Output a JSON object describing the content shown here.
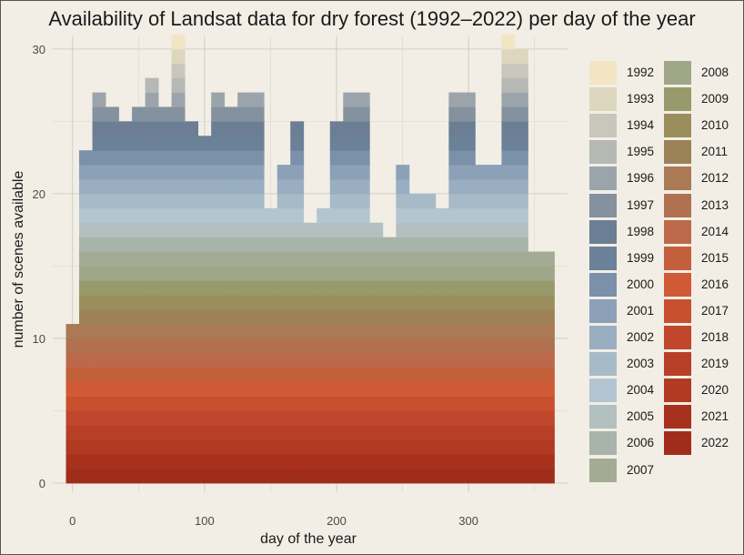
{
  "chart_data": {
    "type": "bar",
    "stacked": true,
    "title": "Availability of Landsat data for dry forest (1992–2022) per day of the year",
    "xlabel": "day of the year",
    "ylabel": "number of scenes available",
    "xlim": [
      -15,
      375
    ],
    "ylim": [
      0,
      31.5
    ],
    "x_ticks": [
      "0",
      "100",
      "200",
      "300"
    ],
    "x_tick_values": [
      0,
      100,
      200,
      300
    ],
    "y_ticks": [
      "0",
      "10",
      "20",
      "30"
    ],
    "y_tick_values": [
      0,
      10,
      20,
      30
    ],
    "grid": true,
    "legend_position": "right",
    "bin_width": 10,
    "x": [
      0,
      10,
      20,
      30,
      40,
      50,
      60,
      70,
      80,
      90,
      100,
      110,
      120,
      130,
      140,
      150,
      160,
      170,
      180,
      190,
      200,
      210,
      220,
      230,
      240,
      250,
      260,
      270,
      280,
      290,
      300,
      310,
      320,
      330,
      340,
      350,
      360
    ],
    "totals": [
      11,
      23,
      27,
      26,
      25,
      26,
      28,
      26,
      31,
      25,
      24,
      27,
      26,
      27,
      27,
      19,
      22,
      25,
      18,
      19,
      25,
      27,
      27,
      18,
      17,
      22,
      20,
      20,
      19,
      27,
      27,
      22,
      22,
      31,
      30,
      16,
      16
    ],
    "series_names": [
      "1992",
      "1993",
      "1994",
      "1995",
      "1996",
      "1997",
      "1998",
      "1999",
      "2000",
      "2001",
      "2002",
      "2003",
      "2004",
      "2005",
      "2006",
      "2007",
      "2008",
      "2009",
      "2010",
      "2011",
      "2012",
      "2013",
      "2014",
      "2015",
      "2016",
      "2017",
      "2018",
      "2019",
      "2020",
      "2021",
      "2022"
    ],
    "colors": [
      "#f2e5c4",
      "#ddd7c0",
      "#c9c7bb",
      "#b5b8b4",
      "#9ca4ab",
      "#84919e",
      "#6c7e93",
      "#6b8198",
      "#7b91a9",
      "#8ca1b8",
      "#99aec1",
      "#a7bac8",
      "#b3c5d0",
      "#b2c0bf",
      "#a8b3aa",
      "#a3ab94",
      "#a0a788",
      "#979a6a",
      "#9a8f5c",
      "#9c8157",
      "#a97a55",
      "#b17150",
      "#bb6948",
      "#c45f3b",
      "#d05a35",
      "#c8502e",
      "#c0472c",
      "#b83f27",
      "#b03a22",
      "#a8311d",
      "#a02d1b"
    ]
  }
}
